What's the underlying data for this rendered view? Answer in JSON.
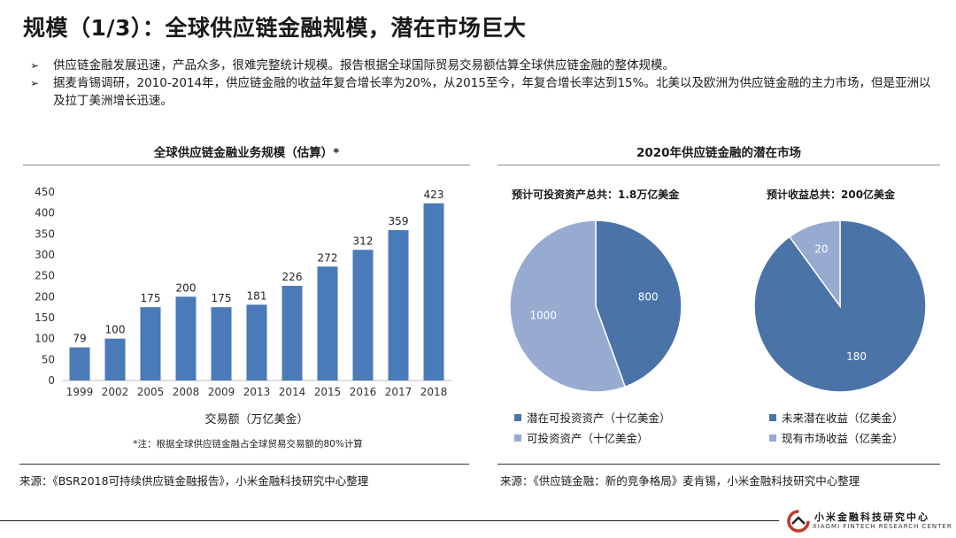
{
  "page": {
    "title": "规模（1/3）：全球供应链金融规模，潜在市场巨大",
    "bullets": [
      "供应链金融发展迅速，产品众多，很难完整统计规模。报告根据全球国际贸易交易额估算全球供应链金融的整体规模。",
      "据麦肯锡调研，2010-2014年，供应链金融的收益年复合增长率为20%，从2015至今，年复合增长率达到15%。北美以及欧洲为供应链金融的主力市场，但是亚洲以及拉丁美洲增长迅速。"
    ],
    "bullet_mark": "➢"
  },
  "left_panel": {
    "title": "全球供应链金融业务规模（估算）*",
    "note": "*注：根据全球供应链金融占全球贸易交易额的80%计算",
    "source": "来源：《BSR2018可持续供应链金融报告》，小米金融科技研究中心整理"
  },
  "right_panel": {
    "title": "2020年供应链金融的潜在市场",
    "source": "来源：《供应链金融：新的竞争格局》麦肯锡，小米金融科技研究中心整理"
  },
  "logo": {
    "cn": "小米金融科技研究中心",
    "en": "XIAOMI FINTECH RESEARCH CENTER"
  },
  "chart_data": [
    {
      "type": "bar",
      "title": "全球供应链金融业务规模（估算）*",
      "xlabel": "交易额（万亿美金）",
      "ylabel": "",
      "categories": [
        "1999",
        "2002",
        "2005",
        "2008",
        "2009",
        "2013",
        "2014",
        "2015",
        "2016",
        "2017",
        "2018"
      ],
      "values": [
        79,
        100,
        175,
        200,
        175,
        181,
        226,
        272,
        312,
        359,
        423
      ],
      "ylim": [
        0,
        450
      ],
      "yticks": [
        0,
        50,
        100,
        150,
        200,
        250,
        300,
        350,
        400,
        450
      ],
      "grid": false,
      "data_labels": true,
      "color": "#4a7ab8"
    },
    {
      "type": "pie",
      "title": "预计可投资资产总共：1.8万亿美金",
      "slices": [
        {
          "name": "潜在可投资资产（十亿美金）",
          "value": 800,
          "color": "#4a73a8"
        },
        {
          "name": "可投资资产（十亿美金）",
          "value": 1000,
          "color": "#97abd0"
        }
      ],
      "legend": "bottom"
    },
    {
      "type": "pie",
      "title": "预计收益总共：200亿美金",
      "slices": [
        {
          "name": "未来潜在收益（亿美金）",
          "value": 180,
          "color": "#4a73a8"
        },
        {
          "name": "现有市场收益（亿美金）",
          "value": 20,
          "color": "#97abd0"
        }
      ],
      "legend": "bottom"
    }
  ]
}
